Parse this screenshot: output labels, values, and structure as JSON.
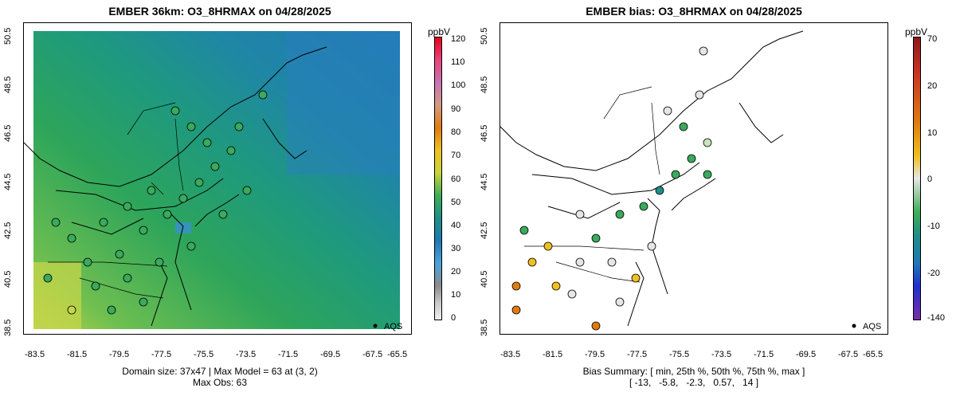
{
  "left_map": {
    "title": "EMBER 36km: O3_8HRMAX on 04/28/2025",
    "x_ticks": [
      "-83.5",
      "-81.5",
      "-79.5",
      "-77.5",
      "-75.5",
      "-73.5",
      "-71.5",
      "-69.5",
      "-67.5",
      "-65.5"
    ],
    "y_ticks": [
      "38.5",
      "40.5",
      "42.5",
      "44.5",
      "46.5",
      "48.5",
      "50.5"
    ],
    "legend_label": "AQS",
    "footer_line1": "Domain size: 37x47 | Max Model = 63 at (3, 2)",
    "footer_line2": "Max Obs: 63",
    "colorbar": {
      "unit": "ppbV",
      "labels": [
        "120",
        "110",
        "100",
        "90",
        "80",
        "70",
        "60",
        "50",
        "40",
        "30",
        "20",
        "10",
        "0"
      ],
      "colors_top_to_bottom": [
        "#e8001c",
        "#e8457a",
        "#c873b3",
        "#d49a86",
        "#e07b10",
        "#eec020",
        "#c9d43a",
        "#3fae56",
        "#1f8f86",
        "#1f78b5",
        "#4aa3dc",
        "#8b8b8b",
        "#c8c8c8",
        "#f0f0f0"
      ]
    }
  },
  "right_map": {
    "title": "EMBER bias: O3_8HRMAX on 04/28/2025",
    "x_ticks": [
      "-83.5",
      "-81.5",
      "-79.5",
      "-77.5",
      "-75.5",
      "-73.5",
      "-71.5",
      "-69.5",
      "-67.5",
      "-65.5"
    ],
    "y_ticks": [
      "38.5",
      "40.5",
      "42.5",
      "44.5",
      "46.5",
      "48.5",
      "50.5"
    ],
    "legend_label": "AQS",
    "footer_line1": "Bias Summary: [ min, 25th %, 50th %, 75th %, max ]",
    "footer_line2": "[ -13,   -5.8,   -2.3,   0.57,   14 ]",
    "colorbar": {
      "unit": "ppbV",
      "labels": [
        "70",
        "20",
        "10",
        "0",
        "-10",
        "-20",
        "-140"
      ],
      "colors_top_to_bottom": [
        "#8b1a1a",
        "#c83224",
        "#e07b10",
        "#eec020",
        "#e6e6e6",
        "#3fae56",
        "#1f8f86",
        "#1f78b5",
        "#2030d0",
        "#7a2ea8"
      ]
    }
  }
}
